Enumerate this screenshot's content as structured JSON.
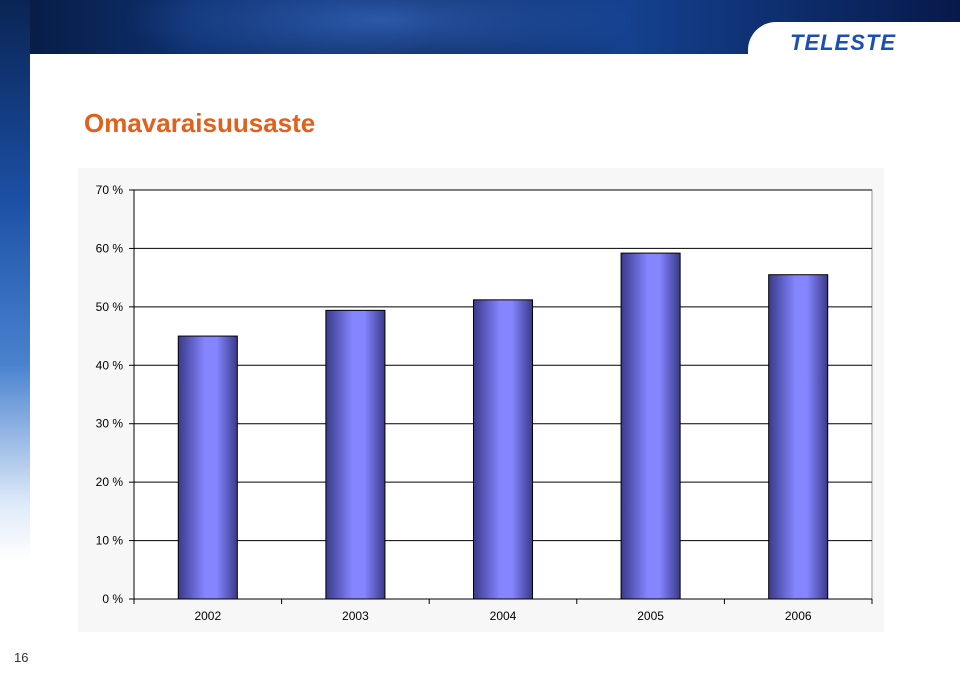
{
  "slide": {
    "title": "Omavaraisuusaste",
    "logo_text": "TELESTE",
    "page_number": "16"
  },
  "colors": {
    "title": "#e0601c",
    "bar_light": "#8585ff",
    "bar_dark": "#3a3a8a",
    "logo": "#1a4fb5"
  },
  "chart_data": {
    "type": "bar",
    "categories": [
      "2002",
      "2003",
      "2004",
      "2005",
      "2006"
    ],
    "values": [
      45,
      49.4,
      51.2,
      59.2,
      55.5
    ],
    "unit": "%",
    "ylim": [
      0,
      70
    ],
    "yticks": [
      0,
      10,
      20,
      30,
      40,
      50,
      60,
      70
    ],
    "ytick_labels": [
      "0 %",
      "10 %",
      "20 %",
      "30 %",
      "40 %",
      "50 %",
      "60 %",
      "70 %"
    ],
    "title": "",
    "xlabel": "",
    "ylabel": "",
    "grid": true,
    "legend": "none"
  }
}
